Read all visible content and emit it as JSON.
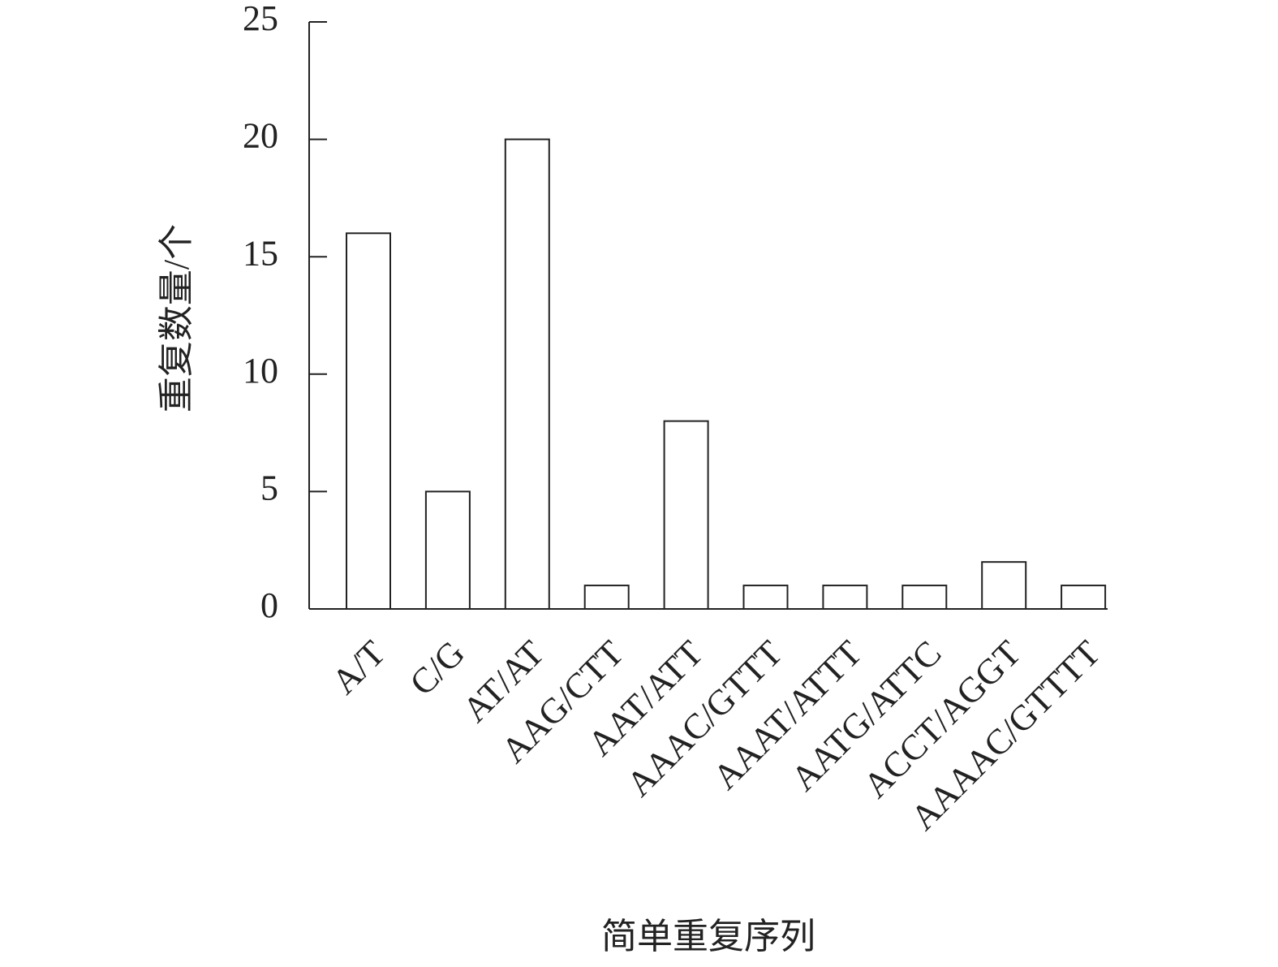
{
  "chart_data": {
    "type": "bar",
    "x_label": "简单重复序列",
    "y_label": "重复数量/个",
    "categories": [
      "A/T",
      "C/G",
      "AT/AT",
      "AAG/CTT",
      "AAT/ATT",
      "AAAC/GTTT",
      "AAAT/ATTT",
      "AATG/ATTC",
      "ACCT/AGGT",
      "AAAAC/GTTTT"
    ],
    "values": [
      16,
      5,
      20,
      1,
      8,
      1,
      1,
      1,
      2,
      1
    ],
    "color": "#ffffff",
    "edge_color": "#222222",
    "ylim": [
      0,
      25
    ],
    "yticks": [
      0,
      5,
      10,
      15,
      20,
      25
    ],
    "grid": false
  }
}
